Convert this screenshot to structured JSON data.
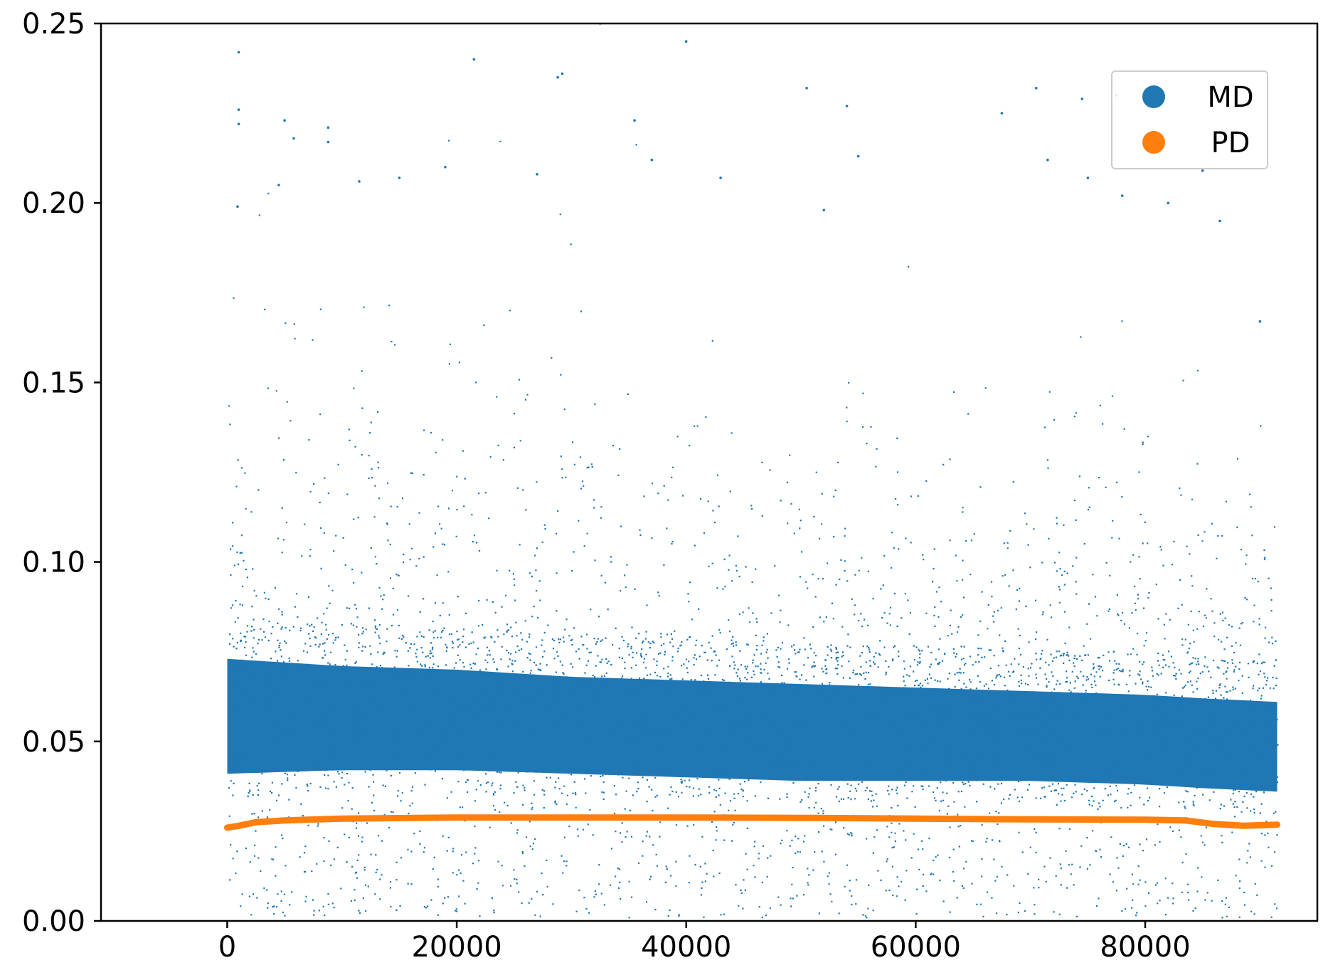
{
  "chart_data": {
    "type": "scatter",
    "title": "",
    "xlabel": "",
    "ylabel": "",
    "xlim": [
      -11000,
      95000
    ],
    "ylim": [
      0.0,
      0.25
    ],
    "xticks": [
      0,
      20000,
      40000,
      60000,
      80000
    ],
    "xtick_labels": [
      "0",
      "20000",
      "40000",
      "60000",
      "80000"
    ],
    "yticks": [
      0.0,
      0.05,
      0.1,
      0.15,
      0.2,
      0.25
    ],
    "ytick_labels": [
      "0.00",
      "0.05",
      "0.10",
      "0.15",
      "0.20",
      "0.25"
    ],
    "grid": false,
    "legend": {
      "placement": "top-right",
      "entries": [
        "MD",
        "PD"
      ]
    },
    "series": [
      {
        "name": "MD",
        "color": "#1f77b4",
        "marker": "point",
        "x_range": [
          0,
          91500
        ],
        "n_points_approx": 91500,
        "band_profile": {
          "x": [
            0,
            10000,
            20000,
            30000,
            40000,
            50000,
            60000,
            70000,
            80000,
            85000,
            91500
          ],
          "median": [
            0.058,
            0.058,
            0.057,
            0.056,
            0.055,
            0.054,
            0.054,
            0.053,
            0.052,
            0.051,
            0.05
          ],
          "dense_low": [
            0.035,
            0.036,
            0.036,
            0.035,
            0.034,
            0.033,
            0.033,
            0.033,
            0.032,
            0.031,
            0.03
          ],
          "dense_high": [
            0.085,
            0.083,
            0.082,
            0.08,
            0.079,
            0.078,
            0.077,
            0.076,
            0.075,
            0.074,
            0.073
          ],
          "spread_max": [
            0.17,
            0.16,
            0.15,
            0.15,
            0.14,
            0.14,
            0.14,
            0.14,
            0.14,
            0.13,
            0.13
          ]
        },
        "outliers": [
          [
            1000,
            0.242
          ],
          [
            1000,
            0.226
          ],
          [
            1000,
            0.222
          ],
          [
            900,
            0.199
          ],
          [
            4500,
            0.205
          ],
          [
            5000,
            0.223
          ],
          [
            5800,
            0.218
          ],
          [
            8800,
            0.221
          ],
          [
            8800,
            0.217
          ],
          [
            11500,
            0.206
          ],
          [
            15000,
            0.207
          ],
          [
            19000,
            0.21
          ],
          [
            21500,
            0.24
          ],
          [
            27000,
            0.208
          ],
          [
            28800,
            0.235
          ],
          [
            29200,
            0.236
          ],
          [
            32500,
            0.25
          ],
          [
            35500,
            0.223
          ],
          [
            37000,
            0.212
          ],
          [
            40000,
            0.245
          ],
          [
            43000,
            0.207
          ],
          [
            50500,
            0.232
          ],
          [
            52000,
            0.198
          ],
          [
            54000,
            0.227
          ],
          [
            55000,
            0.213
          ],
          [
            67500,
            0.225
          ],
          [
            70500,
            0.232
          ],
          [
            71500,
            0.212
          ],
          [
            74500,
            0.229
          ],
          [
            75000,
            0.207
          ],
          [
            77500,
            0.23
          ],
          [
            78000,
            0.202
          ],
          [
            82000,
            0.2
          ],
          [
            85000,
            0.209
          ],
          [
            86500,
            0.195
          ],
          [
            90000,
            0.167
          ]
        ]
      },
      {
        "name": "PD",
        "color": "#ff7f0e",
        "marker": "point",
        "points": [
          [
            0,
            0.026
          ],
          [
            1000,
            0.0265
          ],
          [
            2500,
            0.0275
          ],
          [
            5000,
            0.028
          ],
          [
            10000,
            0.0285
          ],
          [
            20000,
            0.0288
          ],
          [
            30000,
            0.0288
          ],
          [
            40000,
            0.0288
          ],
          [
            50000,
            0.0287
          ],
          [
            60000,
            0.0285
          ],
          [
            70000,
            0.0283
          ],
          [
            80000,
            0.0282
          ],
          [
            83500,
            0.028
          ],
          [
            86000,
            0.027
          ],
          [
            88500,
            0.0265
          ],
          [
            91500,
            0.0268
          ]
        ]
      }
    ]
  }
}
